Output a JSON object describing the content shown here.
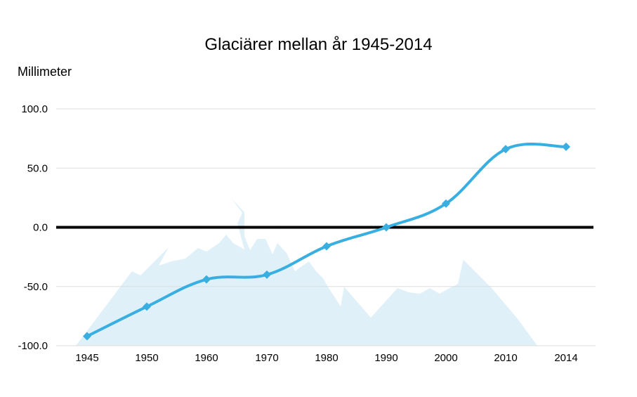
{
  "chart_data": {
    "type": "line",
    "title": "Glaciärer mellan år 1945-2014",
    "ylabel": "Millimeter",
    "xlabel": "",
    "categories": [
      "1945",
      "1950",
      "1960",
      "1970",
      "1980",
      "1990",
      "2000",
      "2010",
      "2014"
    ],
    "series": [
      {
        "values": [
          -92,
          -67,
          -44,
          -40,
          -16,
          0,
          20,
          66,
          68
        ]
      }
    ],
    "ylim": [
      -100,
      100
    ],
    "yticks": [
      "100.0",
      "50.0",
      "0.0",
      "-50.0",
      "-100.0"
    ],
    "grid": true,
    "legend": "none",
    "colors": {
      "line": "#38afe0",
      "marker": "#38afe0",
      "zero_line": "#000000",
      "grid": "#dddddd",
      "mountains": "#dff0f8"
    },
    "background_image": "mountains-illustration"
  }
}
